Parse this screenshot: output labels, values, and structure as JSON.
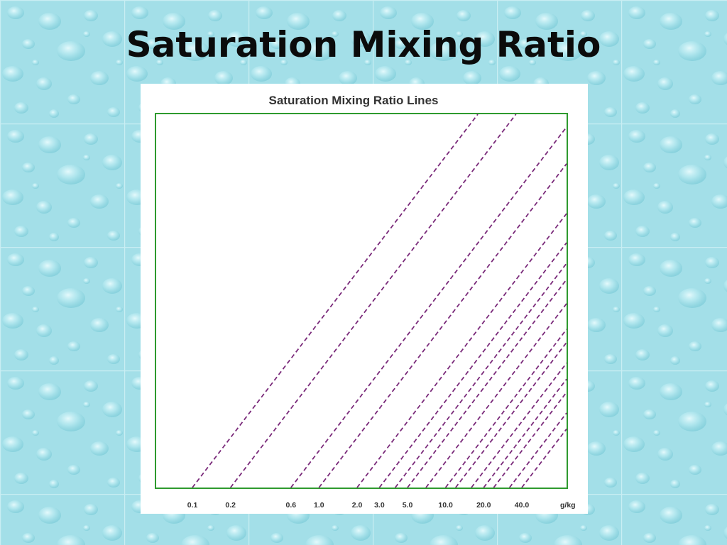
{
  "slide": {
    "title": "Saturation Mixing Ratio"
  },
  "chart_data": {
    "type": "line",
    "title": "Saturation Mixing Ratio Lines",
    "unit": "g/kg",
    "line_style": "dashed",
    "line_color": "#7a2a7a",
    "frame_color": "#2e9a2e",
    "labeled_values": [
      "0.1",
      "0.2",
      "0.6",
      "1.0",
      "2.0",
      "3.0",
      "5.0",
      "10.0",
      "20.0",
      "40.0"
    ],
    "series": [
      {
        "value": "0.1",
        "labeled": true
      },
      {
        "value": "0.2",
        "labeled": true
      },
      {
        "value": "0.6",
        "labeled": true
      },
      {
        "value": "1.0",
        "labeled": true
      },
      {
        "value": "2.0",
        "labeled": true
      },
      {
        "value": "3.0",
        "labeled": true
      },
      {
        "value": "4.0",
        "labeled": false
      },
      {
        "value": "5.0",
        "labeled": true
      },
      {
        "value": "7.0",
        "labeled": false
      },
      {
        "value": "10.0",
        "labeled": true
      },
      {
        "value": "12.0",
        "labeled": false
      },
      {
        "value": "16.0",
        "labeled": false
      },
      {
        "value": "20.0",
        "labeled": true
      },
      {
        "value": "24.0",
        "labeled": false
      },
      {
        "value": "32.0",
        "labeled": false
      },
      {
        "value": "40.0",
        "labeled": true
      }
    ]
  }
}
